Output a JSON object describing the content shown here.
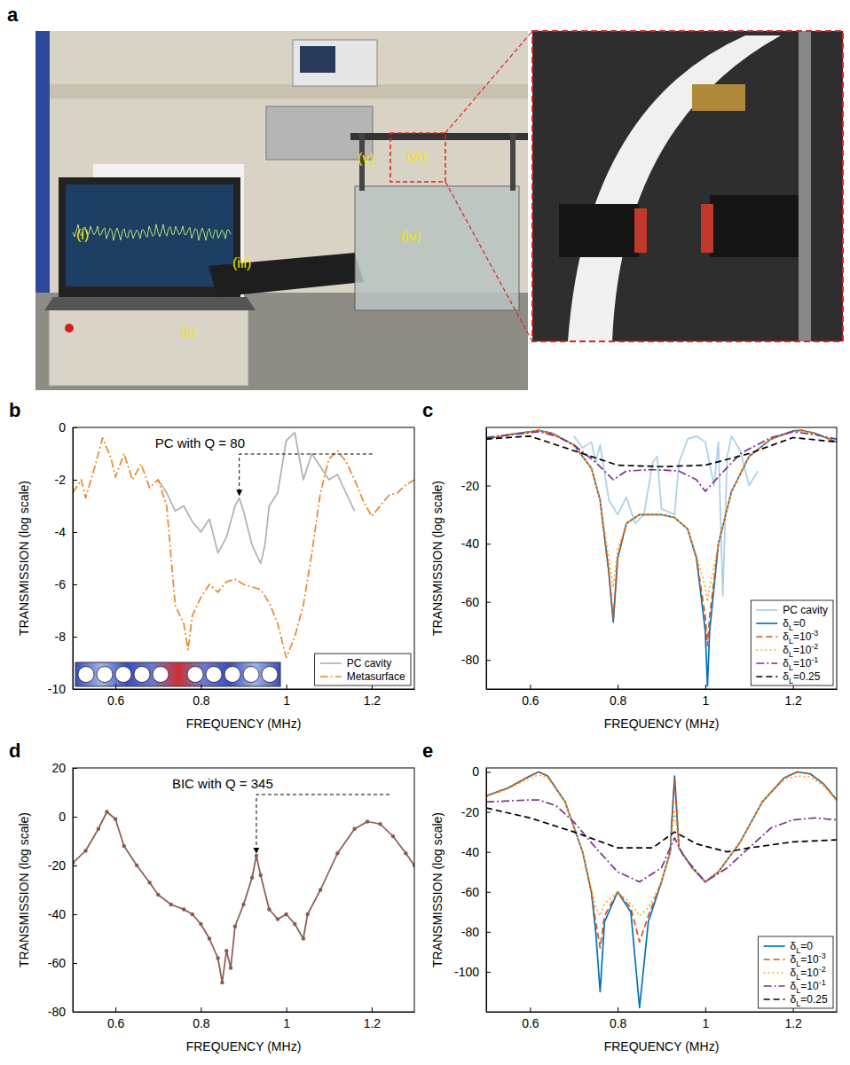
{
  "panel_a": {
    "panel": "a",
    "labels": [
      "(i)",
      "(ii)",
      "(iii)",
      "(iv)",
      "(v)",
      "(vi)"
    ]
  },
  "chart_data": [
    {
      "panel": "b",
      "type": "line",
      "xlabel": "FREQUENCY (MHz)",
      "ylabel": "TRANSMISSION (log scale)",
      "xlim": [
        0.5,
        1.3
      ],
      "ylim": [
        -10,
        0
      ],
      "xticks": [
        0.6,
        0.8,
        1,
        1.2
      ],
      "yticks": [
        0,
        -2,
        -4,
        -6,
        -8,
        -10
      ],
      "legend": "lower right",
      "annotations": [
        {
          "text": "PC with Q = 80",
          "x": 0.89,
          "y": -2.7
        }
      ],
      "series": [
        {
          "name": "PC cavity",
          "color": "#b0b0b0",
          "line_style": "solid",
          "x": [
            0.7,
            0.72,
            0.74,
            0.76,
            0.78,
            0.8,
            0.82,
            0.84,
            0.86,
            0.88,
            0.89,
            0.9,
            0.92,
            0.94,
            0.95,
            0.96,
            0.98,
            1.0,
            1.02,
            1.04,
            1.06,
            1.08,
            1.1,
            1.12,
            1.14,
            1.16
          ],
          "values": [
            -2.0,
            -2.5,
            -3.2,
            -3.0,
            -3.6,
            -4.0,
            -3.5,
            -4.8,
            -4.2,
            -3.0,
            -2.7,
            -3.2,
            -4.5,
            -5.2,
            -4.5,
            -3.0,
            -2.5,
            -0.5,
            -0.2,
            -2.0,
            -1.0,
            -1.5,
            -2.0,
            -1.8,
            -2.5,
            -3.2
          ]
        },
        {
          "name": "Metasurface",
          "color": "#e8892b",
          "line_style": "dashdot",
          "x": [
            0.5,
            0.52,
            0.53,
            0.55,
            0.57,
            0.59,
            0.6,
            0.62,
            0.64,
            0.66,
            0.68,
            0.7,
            0.72,
            0.74,
            0.76,
            0.77,
            0.78,
            0.8,
            0.82,
            0.84,
            0.86,
            0.88,
            0.9,
            0.92,
            0.94,
            0.96,
            0.98,
            1.0,
            1.02,
            1.04,
            1.06,
            1.08,
            1.1,
            1.12,
            1.14,
            1.16,
            1.18,
            1.2,
            1.22,
            1.24,
            1.26,
            1.28,
            1.3
          ],
          "values": [
            -2.5,
            -2.0,
            -2.7,
            -1.6,
            -0.4,
            -1.2,
            -1.9,
            -1.0,
            -2.0,
            -1.4,
            -2.3,
            -2.0,
            -3.0,
            -6.8,
            -7.5,
            -8.5,
            -7.2,
            -6.5,
            -6.0,
            -6.3,
            -5.9,
            -5.8,
            -6.0,
            -6.1,
            -6.2,
            -6.7,
            -7.5,
            -8.8,
            -8.0,
            -6.8,
            -4.8,
            -2.5,
            -1.2,
            -0.9,
            -1.3,
            -2.0,
            -2.8,
            -3.4,
            -3.0,
            -2.6,
            -2.5,
            -2.2,
            -2.0
          ]
        }
      ]
    },
    {
      "panel": "c",
      "type": "line",
      "xlabel": "FREQUENCY (MHz)",
      "ylabel": "TRANSMISSION (log scale)",
      "xlim": [
        0.5,
        1.3
      ],
      "ylim": [
        -90,
        0
      ],
      "xticks": [
        0.6,
        0.8,
        1,
        1.2
      ],
      "yticks": [
        -20,
        -40,
        -60,
        -80
      ],
      "legend": "lower right",
      "series": [
        {
          "name": "PC cavity",
          "color": "#a9d0ea",
          "line_style": "solid",
          "x": [
            0.7,
            0.72,
            0.74,
            0.75,
            0.76,
            0.78,
            0.8,
            0.82,
            0.84,
            0.86,
            0.88,
            0.89,
            0.9,
            0.93,
            0.94,
            0.96,
            0.98,
            1.0,
            1.02,
            1.03,
            1.04,
            1.05,
            1.06,
            1.08,
            1.1,
            1.12
          ],
          "values": [
            -3,
            -7,
            -5,
            -12,
            -6,
            -25,
            -30,
            -24,
            -33,
            -30,
            -12,
            -10,
            -28,
            -30,
            -12,
            -4,
            -3,
            -5,
            -20,
            -5,
            -58,
            -10,
            -3,
            -8,
            -20,
            -15
          ]
        },
        {
          "name": "δL=0",
          "color": "#0072bd",
          "line_style": "solid",
          "x": [
            0.5,
            0.55,
            0.6,
            0.62,
            0.65,
            0.7,
            0.74,
            0.76,
            0.78,
            0.79,
            0.8,
            0.82,
            0.85,
            0.88,
            0.9,
            0.93,
            0.96,
            0.98,
            1.0,
            1.005,
            1.01,
            1.03,
            1.06,
            1.1,
            1.15,
            1.2,
            1.22,
            1.25,
            1.3
          ],
          "values": [
            -4,
            -2.5,
            -1.5,
            -1,
            -2,
            -6,
            -14,
            -25,
            -50,
            -67,
            -45,
            -33,
            -30,
            -30,
            -30,
            -31,
            -35,
            -45,
            -70,
            -89,
            -70,
            -40,
            -22,
            -10,
            -4,
            -1.2,
            -1,
            -2,
            -5
          ]
        },
        {
          "name": "δL=10-3",
          "color": "#d95319",
          "line_style": "dashed",
          "x": [
            0.5,
            0.55,
            0.6,
            0.62,
            0.65,
            0.7,
            0.74,
            0.76,
            0.78,
            0.79,
            0.8,
            0.82,
            0.85,
            0.88,
            0.9,
            0.93,
            0.96,
            0.98,
            1.0,
            1.005,
            1.01,
            1.03,
            1.06,
            1.1,
            1.15,
            1.2,
            1.22,
            1.25,
            1.3
          ],
          "values": [
            -4,
            -2.5,
            -1.5,
            -1,
            -2,
            -6,
            -14,
            -25,
            -50,
            -66,
            -45,
            -33,
            -30,
            -30,
            -30,
            -31,
            -35,
            -45,
            -65,
            -75,
            -65,
            -40,
            -22,
            -10,
            -4,
            -1.2,
            -1,
            -2,
            -5
          ]
        },
        {
          "name": "δL=10-2",
          "color": "#edb120",
          "line_style": "dotted",
          "x": [
            0.5,
            0.55,
            0.6,
            0.62,
            0.65,
            0.7,
            0.74,
            0.76,
            0.78,
            0.79,
            0.8,
            0.82,
            0.85,
            0.88,
            0.9,
            0.93,
            0.96,
            0.98,
            1.0,
            1.005,
            1.01,
            1.03,
            1.06,
            1.1,
            1.15,
            1.2,
            1.22,
            1.25,
            1.3
          ],
          "values": [
            -4,
            -2.5,
            -1.6,
            -1.2,
            -2.2,
            -6,
            -14,
            -25,
            -45,
            -55,
            -42,
            -33,
            -30,
            -30,
            -30,
            -31,
            -35,
            -44,
            -55,
            -60,
            -55,
            -40,
            -22,
            -10,
            -4.2,
            -1.5,
            -1.3,
            -2.2,
            -5
          ]
        },
        {
          "name": "δL=10-1",
          "color": "#7e2f8e",
          "line_style": "dashdot",
          "x": [
            0.5,
            0.6,
            0.62,
            0.66,
            0.7,
            0.75,
            0.79,
            0.82,
            0.88,
            0.94,
            0.98,
            1.0,
            1.03,
            1.08,
            1.15,
            1.2,
            1.25,
            1.3
          ],
          "values": [
            -3.5,
            -1.8,
            -1.5,
            -3,
            -6,
            -12,
            -18,
            -15,
            -14.5,
            -15,
            -18,
            -22,
            -17,
            -9,
            -3.5,
            -1.5,
            -2.5,
            -4
          ]
        },
        {
          "name": "δL=0.25",
          "color": "#000000",
          "line_style": "dashed",
          "x": [
            0.5,
            0.6,
            0.7,
            0.8,
            0.9,
            1.0,
            1.1,
            1.2,
            1.3
          ],
          "values": [
            -4,
            -3,
            -8,
            -13,
            -13.5,
            -13,
            -9,
            -3.5,
            -5
          ]
        }
      ]
    },
    {
      "panel": "d",
      "type": "line",
      "xlabel": "FREQUENCY (MHz)",
      "ylabel": "TRANSMISSION (log scale)",
      "xlim": [
        0.5,
        1.3
      ],
      "ylim": [
        -80,
        20
      ],
      "xticks": [
        0.6,
        0.8,
        1,
        1.2
      ],
      "yticks": [
        20,
        0,
        -20,
        -40,
        -60,
        -80
      ],
      "annotations": [
        {
          "text": "BIC with Q = 345",
          "x": 0.93,
          "y": -16
        }
      ],
      "x": [
        0.5,
        0.53,
        0.56,
        0.58,
        0.6,
        0.62,
        0.65,
        0.68,
        0.7,
        0.73,
        0.76,
        0.78,
        0.8,
        0.82,
        0.84,
        0.85,
        0.86,
        0.87,
        0.88,
        0.9,
        0.92,
        0.93,
        0.94,
        0.96,
        0.98,
        1.0,
        1.02,
        1.04,
        1.05,
        1.08,
        1.12,
        1.16,
        1.19,
        1.22,
        1.25,
        1.28,
        1.3
      ],
      "series": [
        {
          "color": "#8b5a4f",
          "line_style": "solid",
          "marker": "circle",
          "values": [
            -19,
            -14,
            -5,
            2,
            -1,
            -12,
            -20,
            -27,
            -32,
            -36,
            -38,
            -40,
            -44,
            -50,
            -58,
            -68,
            -55,
            -62,
            -45,
            -36,
            -25,
            -16,
            -24,
            -38,
            -42,
            -40,
            -44,
            -50,
            -40,
            -30,
            -15,
            -5,
            -2,
            -3,
            -8,
            -15,
            -20
          ]
        }
      ]
    },
    {
      "panel": "e",
      "type": "line",
      "xlabel": "FREQUENCY (MHz)",
      "ylabel": "TRANSMISSION (log scale)",
      "xlim": [
        0.5,
        1.3
      ],
      "ylim": [
        -120,
        2
      ],
      "xticks": [
        0.6,
        0.8,
        1,
        1.2
      ],
      "yticks": [
        0,
        -20,
        -40,
        -60,
        -80,
        -100
      ],
      "legend": "lower right",
      "series": [
        {
          "name": "δL=0",
          "color": "#0072bd",
          "line_style": "solid",
          "x": [
            0.5,
            0.55,
            0.6,
            0.62,
            0.64,
            0.68,
            0.72,
            0.74,
            0.75,
            0.76,
            0.77,
            0.8,
            0.83,
            0.85,
            0.87,
            0.9,
            0.92,
            0.925,
            0.93,
            0.935,
            0.94,
            0.97,
            1.0,
            1.03,
            1.08,
            1.13,
            1.18,
            1.21,
            1.24,
            1.27,
            1.3
          ],
          "values": [
            -12,
            -8,
            -2,
            0,
            -2,
            -15,
            -40,
            -60,
            -80,
            -110,
            -75,
            -60,
            -70,
            -118,
            -75,
            -55,
            -40,
            -20,
            -2,
            -20,
            -38,
            -48,
            -55,
            -50,
            -35,
            -15,
            -3,
            0,
            -1,
            -6,
            -14
          ]
        },
        {
          "name": "δL=10-3",
          "color": "#d95319",
          "line_style": "dashed",
          "x": [
            0.5,
            0.55,
            0.6,
            0.62,
            0.64,
            0.68,
            0.72,
            0.74,
            0.75,
            0.76,
            0.77,
            0.8,
            0.83,
            0.85,
            0.87,
            0.9,
            0.92,
            0.925,
            0.93,
            0.935,
            0.94,
            0.97,
            1.0,
            1.03,
            1.08,
            1.13,
            1.18,
            1.21,
            1.24,
            1.27,
            1.3
          ],
          "values": [
            -12,
            -8,
            -2,
            0,
            -2,
            -15,
            -40,
            -60,
            -75,
            -88,
            -72,
            -60,
            -68,
            -85,
            -72,
            -55,
            -40,
            -20,
            -3,
            -20,
            -38,
            -48,
            -55,
            -50,
            -35,
            -15,
            -3,
            0,
            -1,
            -6,
            -14
          ]
        },
        {
          "name": "δL=10-2",
          "color": "#edb120",
          "line_style": "dotted",
          "x": [
            0.5,
            0.55,
            0.6,
            0.62,
            0.64,
            0.68,
            0.72,
            0.74,
            0.75,
            0.76,
            0.77,
            0.8,
            0.83,
            0.85,
            0.87,
            0.9,
            0.92,
            0.925,
            0.93,
            0.935,
            0.94,
            0.97,
            1.0,
            1.03,
            1.08,
            1.13,
            1.18,
            1.21,
            1.24,
            1.27,
            1.3
          ],
          "values": [
            -12.5,
            -8.5,
            -3,
            -1.5,
            -3,
            -15,
            -40,
            -58,
            -68,
            -72,
            -66,
            -60,
            -66,
            -72,
            -68,
            -55,
            -40,
            -28,
            -20,
            -28,
            -38,
            -48,
            -55,
            -50,
            -35,
            -15,
            -4,
            -2,
            -2.5,
            -7,
            -14.5
          ]
        },
        {
          "name": "δL=10-1",
          "color": "#7e2f8e",
          "line_style": "dashdot",
          "x": [
            0.5,
            0.6,
            0.62,
            0.66,
            0.7,
            0.75,
            0.8,
            0.85,
            0.9,
            0.93,
            0.95,
            1.0,
            1.05,
            1.1,
            1.15,
            1.2,
            1.25,
            1.3
          ],
          "values": [
            -15,
            -14,
            -14,
            -17,
            -25,
            -38,
            -50,
            -55,
            -48,
            -33,
            -42,
            -55,
            -48,
            -38,
            -28,
            -24,
            -23,
            -24
          ]
        },
        {
          "name": "δL=0.25",
          "color": "#000000",
          "line_style": "dashed",
          "x": [
            0.5,
            0.6,
            0.7,
            0.8,
            0.88,
            0.93,
            0.98,
            1.05,
            1.1,
            1.2,
            1.3
          ],
          "values": [
            -18,
            -23,
            -30,
            -38,
            -38,
            -30,
            -36,
            -40,
            -38,
            -35,
            -34
          ]
        }
      ]
    }
  ]
}
